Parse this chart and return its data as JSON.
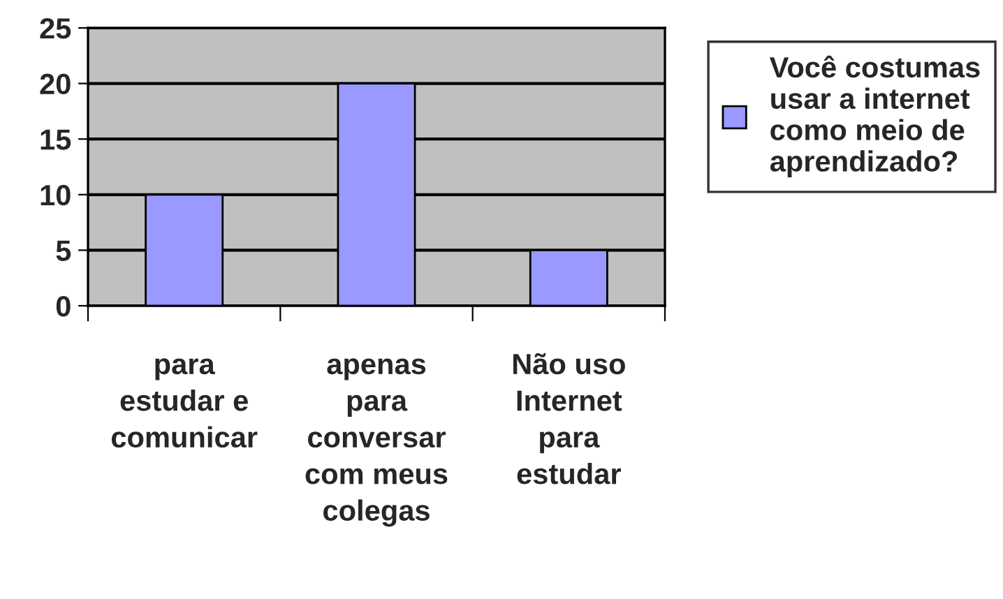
{
  "chart_data": {
    "type": "bar",
    "categories": [
      "para\nestudar e\ncomunicar",
      "apenas\npara\nconversar\ncom meus\ncolegas",
      "Não uso\nInternet\npara\nestudar"
    ],
    "series": [
      {
        "name": "Você costumas\nusar a internet\ncomo meio de\naprendizado?",
        "color": "#9999ff",
        "values": [
          10,
          20,
          5
        ]
      }
    ],
    "ylim": [
      0,
      25
    ],
    "yticks": [
      0,
      5,
      10,
      15,
      20,
      25
    ],
    "grid": "y",
    "legend": "right"
  }
}
